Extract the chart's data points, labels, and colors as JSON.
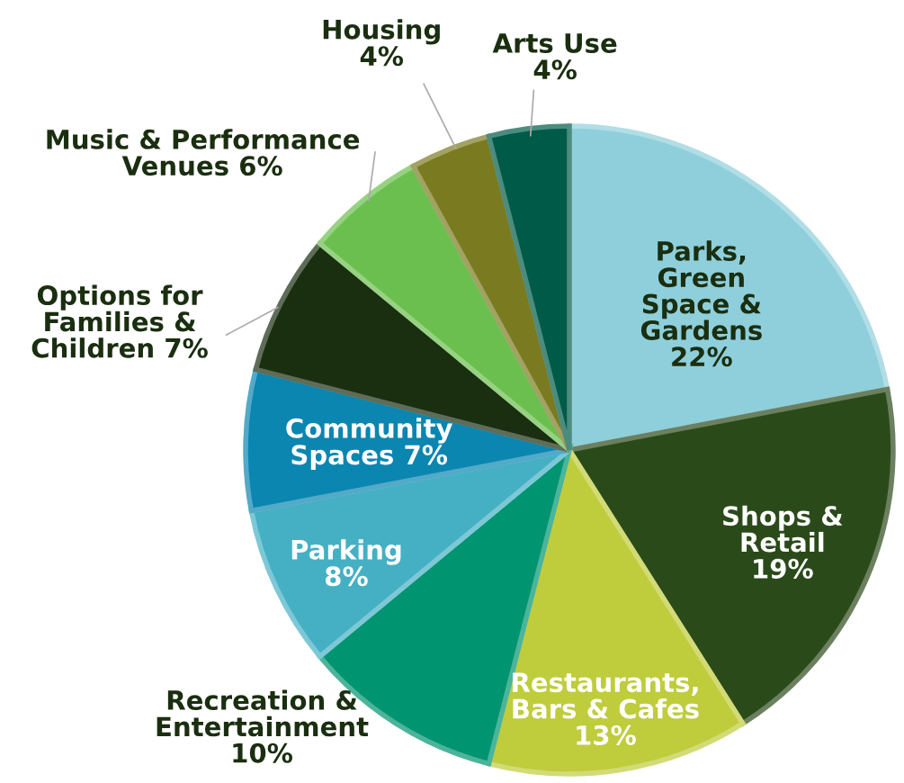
{
  "chart_data": {
    "type": "pie",
    "categories": [
      "Parks,\nGreen\nSpace &\nGardens",
      "Shops &\nRetail",
      "Restaurants,\nBars & Cafes",
      "Recreation &\nEntertainment",
      "Parking",
      "Community\nSpaces",
      "Options for\nFamilies &\nChildren",
      "Music & Performance\nVenues",
      "Housing",
      "Arts Use"
    ],
    "values": [
      22,
      19,
      13,
      10,
      8,
      7,
      7,
      6,
      4,
      4
    ],
    "value_labels": [
      "22%",
      "19%",
      "13%",
      "10%",
      "8%",
      "7%",
      "7%",
      "6%",
      "4%",
      "4%"
    ],
    "colors": [
      "#8fcfdb",
      "#2b4a1a",
      "#bfcc3c",
      "#009470",
      "#45b0c4",
      "#0a86b0",
      "#1a2e10",
      "#6bbf4e",
      "#7a7a20",
      "#005a48"
    ],
    "legend": false
  }
}
